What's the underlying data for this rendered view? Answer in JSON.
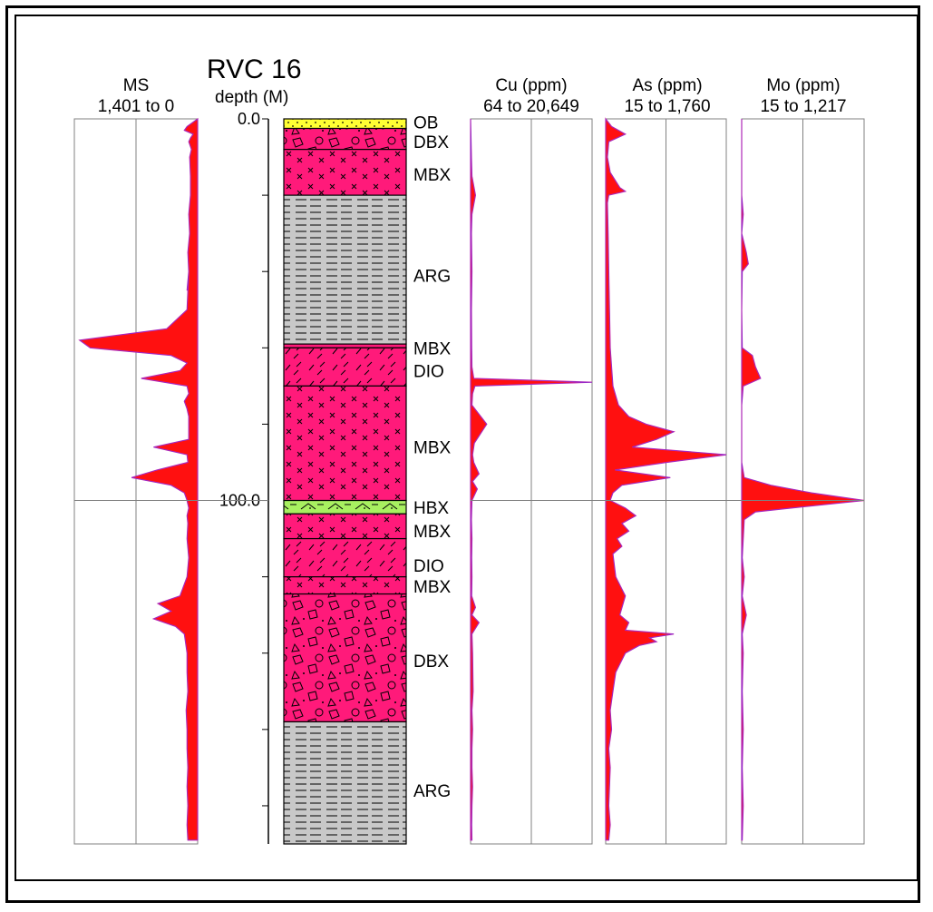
{
  "title": "RVC 16",
  "colors": {
    "title": "#1f2fbf",
    "trace_main": "#ff1010",
    "trace_blue": "#3a3aff",
    "trace_magenta": "#e0209a",
    "trace_cyan": "#27b8d8",
    "unit_pink": "#ff1a7a",
    "unit_gray": "#c8c8c8",
    "unit_yellow": "#ffff33",
    "unit_green": "#a8f060",
    "grid": "#808080"
  },
  "depth_axis": {
    "label": "depth (M)",
    "tick_labels": [
      "0.0",
      "100.0"
    ],
    "max_depth": 190
  },
  "chart_data": [
    {
      "type": "area",
      "name": "MS",
      "range_label": "1,401 to 0",
      "reversed": true,
      "baseline": 1401,
      "min": 0,
      "depths": [
        0,
        2,
        3,
        4,
        5,
        6,
        8,
        10,
        15,
        20,
        25,
        30,
        35,
        40,
        45,
        40,
        50,
        55,
        58,
        60,
        62,
        64,
        66,
        68,
        70,
        72,
        74,
        76,
        78,
        80,
        82,
        84,
        86,
        88,
        90,
        92,
        94,
        96,
        98,
        100,
        102,
        104,
        106,
        110,
        115,
        120,
        125,
        127,
        129,
        131,
        133,
        135,
        140,
        145,
        150,
        155,
        160,
        165,
        170,
        175,
        180,
        185,
        189
      ],
      "values": [
        1401,
        1280,
        1250,
        1350,
        1320,
        1300,
        1330,
        1310,
        1320,
        1320,
        1300,
        1310,
        1290,
        1300,
        1280,
        1300,
        1280,
        1050,
        60,
        180,
        1100,
        1280,
        1200,
        760,
        1280,
        1300,
        1250,
        1280,
        1300,
        1300,
        1300,
        1300,
        900,
        1280,
        1290,
        940,
        650,
        1100,
        1250,
        1280,
        1300,
        1280,
        1290,
        1280,
        1300,
        1280,
        1200,
        950,
        1100,
        900,
        1150,
        1250,
        1280,
        1280,
        1290,
        1270,
        1280,
        1280,
        1290,
        1280,
        1290,
        1280,
        1290
      ]
    },
    {
      "type": "area",
      "name": "Cu (ppm)",
      "range_label": "64 to 20,649",
      "min": 64,
      "max": 20649,
      "depths": [
        0,
        10,
        15,
        20,
        25,
        30,
        40,
        50,
        60,
        65,
        68,
        69,
        70,
        72,
        75,
        80,
        85,
        88,
        90,
        93,
        95,
        97,
        99,
        100,
        105,
        110,
        115,
        120,
        125,
        128,
        130,
        132,
        135,
        140,
        150,
        155,
        160,
        165,
        170,
        175,
        180,
        185,
        189
      ],
      "values": [
        64,
        200,
        300,
        900,
        300,
        200,
        300,
        200,
        250,
        300,
        600,
        20649,
        800,
        400,
        300,
        2800,
        700,
        400,
        600,
        1500,
        400,
        1200,
        600,
        300,
        200,
        300,
        250,
        300,
        250,
        900,
        300,
        1500,
        300,
        400,
        500,
        300,
        400,
        300,
        300,
        400,
        300,
        250,
        300
      ]
    },
    {
      "type": "area",
      "name": "As (ppm)",
      "range_label": "15 to 1,760",
      "min": 15,
      "max": 1760,
      "depths": [
        0,
        2,
        4,
        6,
        8,
        10,
        14,
        18,
        19,
        20,
        22,
        30,
        40,
        50,
        60,
        70,
        75,
        78,
        80,
        82,
        84,
        86,
        88,
        90,
        92,
        94,
        96,
        98,
        100,
        102,
        104,
        106,
        108,
        110,
        112,
        114,
        120,
        125,
        130,
        132,
        134,
        135,
        136,
        137,
        138,
        140,
        145,
        150,
        155,
        160,
        165,
        170,
        175,
        180,
        185,
        189
      ],
      "values": [
        15,
        100,
        300,
        60,
        50,
        40,
        80,
        220,
        300,
        60,
        40,
        50,
        60,
        70,
        80,
        120,
        200,
        350,
        600,
        1000,
        750,
        400,
        1760,
        900,
        150,
        950,
        250,
        120,
        80,
        300,
        450,
        250,
        350,
        180,
        250,
        120,
        160,
        300,
        220,
        350,
        300,
        1000,
        650,
        750,
        500,
        300,
        160,
        120,
        80,
        100,
        60,
        80,
        70,
        60,
        80,
        60
      ]
    },
    {
      "type": "area",
      "name": "Mo (ppm)",
      "range_label": "15 to 1,217",
      "min": 15,
      "max": 1217,
      "depths": [
        0,
        20,
        25,
        30,
        35,
        38,
        40,
        50,
        60,
        62,
        65,
        68,
        70,
        75,
        80,
        90,
        94,
        96,
        98,
        100,
        102,
        103,
        105,
        110,
        115,
        120,
        125,
        130,
        135,
        140,
        150,
        160,
        170,
        180,
        189
      ],
      "values": [
        15,
        15,
        30,
        15,
        60,
        80,
        20,
        15,
        20,
        120,
        150,
        200,
        30,
        15,
        15,
        15,
        40,
        300,
        700,
        1217,
        500,
        150,
        40,
        30,
        20,
        40,
        20,
        60,
        20,
        30,
        20,
        30,
        20,
        30,
        20
      ]
    }
  ],
  "lithology": [
    {
      "code": "OB",
      "from": 0,
      "to": 2.5,
      "pattern": "dots",
      "color": "#ffff33"
    },
    {
      "code": "DBX",
      "from": 2.5,
      "to": 8,
      "pattern": "breccia",
      "color": "#ff1a7a"
    },
    {
      "code": "MBX",
      "from": 8,
      "to": 20,
      "pattern": "cross",
      "color": "#ff1a7a"
    },
    {
      "code": "ARG",
      "from": 20,
      "to": 59,
      "pattern": "dash",
      "color": "#c8c8c8"
    },
    {
      "code": "MBX",
      "from": 59,
      "to": 60,
      "pattern": "cross",
      "color": "#ff1a7a"
    },
    {
      "code": "DIO",
      "from": 60,
      "to": 70,
      "pattern": "tick",
      "color": "#ff1a7a"
    },
    {
      "code": "MBX",
      "from": 70,
      "to": 100,
      "pattern": "cross",
      "color": "#ff1a7a"
    },
    {
      "code": "HBX",
      "from": 100,
      "to": 103.5,
      "pattern": "hbx",
      "color": "#a8f060"
    },
    {
      "code": "MBX",
      "from": 103.5,
      "to": 110,
      "pattern": "cross",
      "color": "#ff1a7a"
    },
    {
      "code": "DIO",
      "from": 110,
      "to": 120,
      "pattern": "tick",
      "color": "#ff1a7a"
    },
    {
      "code": "MBX",
      "from": 120,
      "to": 124.5,
      "pattern": "cross",
      "color": "#ff1a7a"
    },
    {
      "code": "DBX",
      "from": 124.5,
      "to": 158,
      "pattern": "breccia",
      "color": "#ff1a7a"
    },
    {
      "code": "ARG",
      "from": 158,
      "to": 190,
      "pattern": "dash",
      "color": "#c8c8c8"
    }
  ],
  "lithology_labels": [
    {
      "text": "OB",
      "depth": 0.8
    },
    {
      "text": "DBX",
      "depth": 6
    },
    {
      "text": "MBX",
      "depth": 14.5
    },
    {
      "text": "ARG",
      "depth": 41
    },
    {
      "text": "MBX",
      "depth": 60
    },
    {
      "text": "DIO",
      "depth": 66
    },
    {
      "text": "MBX",
      "depth": 86
    },
    {
      "text": "HBX",
      "depth": 101.8
    },
    {
      "text": "MBX",
      "depth": 108
    },
    {
      "text": "DIO",
      "depth": 117
    },
    {
      "text": "MBX",
      "depth": 122.5
    },
    {
      "text": "DBX",
      "depth": 142
    },
    {
      "text": "ARG",
      "depth": 176
    }
  ]
}
